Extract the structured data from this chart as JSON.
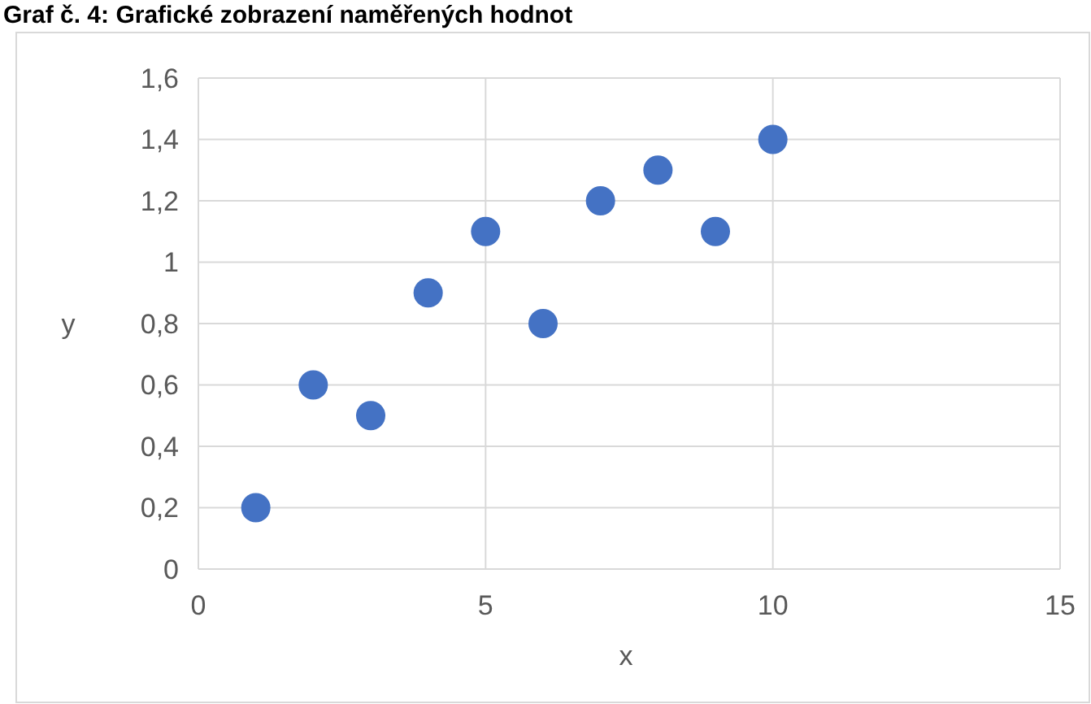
{
  "chart_data": {
    "type": "scatter",
    "title": "Graf č. 4: Grafické zobrazení naměřených hodnot",
    "xlabel": "x",
    "ylabel": "y",
    "x": [
      1,
      2,
      3,
      4,
      5,
      6,
      7,
      8,
      9,
      10
    ],
    "series": [
      {
        "color": "#4472c4",
        "values": [
          0.2,
          0.6,
          0.5,
          0.9,
          1.1,
          0.8,
          1.2,
          1.3,
          1.1,
          1.4
        ]
      }
    ],
    "xlim": [
      0,
      15
    ],
    "xticks": [
      0,
      5,
      10,
      15
    ],
    "ylim": [
      0,
      1.6
    ],
    "yticks": [
      0,
      {
        "value": 0.2,
        "label": "0,2"
      },
      {
        "value": 0.4,
        "label": "0,4"
      },
      {
        "value": 0.6,
        "label": "0,6"
      },
      {
        "value": 0.8,
        "label": "0,8"
      },
      1,
      {
        "value": 1.2,
        "label": "1,2"
      },
      {
        "value": 1.4,
        "label": "1,4"
      },
      {
        "value": 1.6,
        "label": "1,6"
      }
    ],
    "grid": true,
    "marker": "circle"
  }
}
